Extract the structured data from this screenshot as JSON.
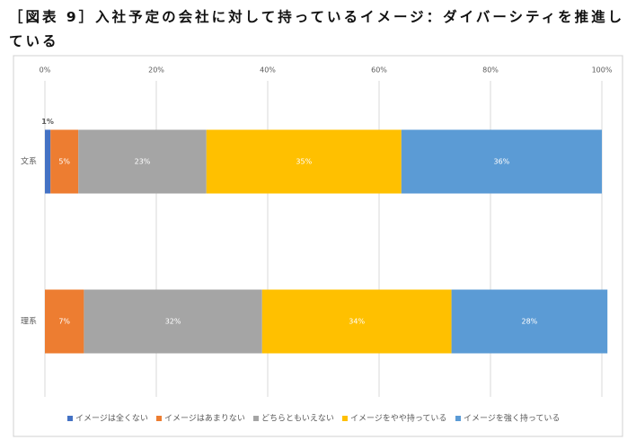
{
  "chart_data": {
    "type": "stacked-bar-horizontal",
    "title": "［図表 9］入社予定の会社に対して持っているイメージ：ダイバーシティを推進している",
    "categories": [
      "文系",
      "理系"
    ],
    "xlim": [
      0,
      100
    ],
    "xticks": [
      {
        "value": 0,
        "label": "0%"
      },
      {
        "value": 20,
        "label": "20%"
      },
      {
        "value": 40,
        "label": "40%"
      },
      {
        "value": 60,
        "label": "60%"
      },
      {
        "value": 80,
        "label": "80%"
      },
      {
        "value": 100,
        "label": "100%"
      }
    ],
    "grid": true,
    "legend": "bottom",
    "series": [
      {
        "name": "イメージは全くない",
        "color": "#4472c4",
        "values": [
          1,
          0
        ],
        "value_labels": [
          "1%",
          null
        ]
      },
      {
        "name": "イメージはあまりない",
        "color": "#ed7d31",
        "values": [
          5,
          7
        ],
        "value_labels": [
          "5%",
          "7%"
        ]
      },
      {
        "name": "どちらともいえない",
        "color": "#a5a5a5",
        "values": [
          23,
          32
        ],
        "value_labels": [
          "23%",
          "32%"
        ]
      },
      {
        "name": "イメージをやや持っている",
        "color": "#ffc000",
        "values": [
          35,
          34
        ],
        "value_labels": [
          "35%",
          "34%"
        ]
      },
      {
        "name": "イメージを強く持っている",
        "color": "#5b9bd5",
        "values": [
          36,
          28
        ],
        "value_labels": [
          "36%",
          "28%"
        ]
      }
    ]
  }
}
